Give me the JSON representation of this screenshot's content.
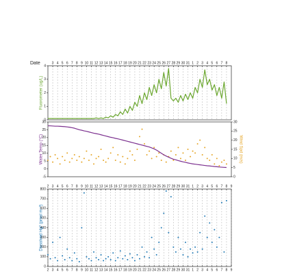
{
  "chart_data": [
    {
      "type": "line",
      "xlabel": "Date",
      "ylabel": "Fluorometer (ug/L)",
      "grid": true,
      "xtick_sides": [
        "top"
      ],
      "xlim": [
        0,
        38
      ],
      "ylim": [
        0,
        4
      ],
      "yticks": [
        0,
        1,
        2,
        3,
        4
      ],
      "xticks": [
        {
          "value": 1,
          "label": "3"
        },
        {
          "value": 2,
          "label": "4"
        },
        {
          "value": 3,
          "label": "5"
        },
        {
          "value": 4,
          "label": "6"
        },
        {
          "value": 5,
          "label": "7"
        },
        {
          "value": 6,
          "label": "8"
        },
        {
          "value": 7,
          "label": "9"
        },
        {
          "value": 8,
          "label": "10"
        },
        {
          "value": 9,
          "label": "11"
        },
        {
          "value": 10,
          "label": "12"
        },
        {
          "value": 11,
          "label": "13"
        },
        {
          "value": 12,
          "label": "14"
        },
        {
          "value": 13,
          "label": "15"
        },
        {
          "value": 14,
          "label": "16"
        },
        {
          "value": 15,
          "label": "17"
        },
        {
          "value": 16,
          "label": "18"
        },
        {
          "value": 17,
          "label": "19"
        },
        {
          "value": 18,
          "label": "20"
        },
        {
          "value": 19,
          "label": "21"
        },
        {
          "value": 20,
          "label": "22"
        },
        {
          "value": 21,
          "label": "23"
        },
        {
          "value": 22,
          "label": "24"
        },
        {
          "value": 23,
          "label": "25"
        },
        {
          "value": 24,
          "label": "26"
        },
        {
          "value": 25,
          "label": "27"
        },
        {
          "value": 26,
          "label": "28"
        },
        {
          "value": 27,
          "label": "29"
        },
        {
          "value": 28,
          "label": "30"
        },
        {
          "value": 29,
          "label": "31"
        },
        {
          "value": 30,
          "label": "1"
        },
        {
          "value": 31,
          "label": "2"
        },
        {
          "value": 32,
          "label": "3"
        },
        {
          "value": 33,
          "label": "4"
        },
        {
          "value": 34,
          "label": "5"
        },
        {
          "value": 35,
          "label": "6"
        },
        {
          "value": 36,
          "label": "7"
        },
        {
          "value": 37,
          "label": "8"
        }
      ],
      "x": [
        0,
        0.5,
        1,
        1.5,
        2,
        2.5,
        3,
        3.5,
        4,
        4.5,
        5,
        5.5,
        6,
        6.5,
        7,
        7.5,
        8,
        8.5,
        9,
        9.5,
        10,
        10.5,
        11,
        11.5,
        12,
        12.5,
        13,
        13.5,
        14,
        14.5,
        15,
        15.5,
        16,
        16.5,
        17,
        17.5,
        18,
        18.5,
        19,
        19.5,
        20,
        20.5,
        21,
        21.5,
        22,
        22.5,
        23,
        23.5,
        24,
        24.5,
        25,
        25.5,
        26,
        26.5,
        27,
        27.5,
        28,
        28.5,
        29,
        29.5,
        30,
        30.5,
        31,
        31.5,
        32,
        32.5,
        33,
        33.5,
        34,
        34.5,
        35,
        35.5,
        36,
        36.5,
        37
      ],
      "series": [
        {
          "type": "line",
          "color": "#6aa62e",
          "values": [
            0.1,
            0.1,
            0.1,
            0.1,
            0.1,
            0.1,
            0.1,
            0.1,
            0.1,
            0.1,
            0.1,
            0.1,
            0.1,
            0.1,
            0.1,
            0.1,
            0.1,
            0.1,
            0.1,
            0.1,
            0.15,
            0.1,
            0.15,
            0.1,
            0.2,
            0.15,
            0.3,
            0.2,
            0.4,
            0.3,
            0.6,
            0.4,
            0.8,
            0.5,
            1.0,
            0.7,
            1.3,
            1.0,
            1.8,
            1.2,
            2.0,
            1.5,
            2.4,
            1.8,
            2.6,
            2.0,
            3.0,
            2.3,
            3.5,
            2.5,
            3.8,
            1.6,
            1.4,
            1.6,
            1.3,
            1.8,
            1.4,
            1.9,
            1.5,
            2.0,
            1.6,
            2.4,
            2.0,
            3.0,
            2.4,
            3.7,
            2.6,
            3.0,
            2.2,
            2.6,
            1.8,
            2.4,
            1.6,
            2.8,
            1.2
          ]
        }
      ]
    },
    {
      "type": "line",
      "ylabel": "Water Temp (°C)",
      "y2label": "Wind Spd (m/s)",
      "grid": false,
      "xtick_sides": [],
      "xlim": [
        0,
        38
      ],
      "ylim": [
        -5,
        30
      ],
      "yticks": [
        -5,
        0,
        5,
        10,
        15,
        20,
        25,
        30
      ],
      "y2lim": [
        0,
        30
      ],
      "y2ticks": [
        0,
        5,
        10,
        15,
        20,
        25,
        30
      ],
      "x": [
        0,
        0.5,
        1,
        1.5,
        2,
        2.5,
        3,
        3.5,
        4,
        4.5,
        5,
        5.5,
        6,
        6.5,
        7,
        7.5,
        8,
        8.5,
        9,
        9.5,
        10,
        10.5,
        11,
        11.5,
        12,
        12.5,
        13,
        13.5,
        14,
        14.5,
        15,
        15.5,
        16,
        16.5,
        17,
        17.5,
        18,
        18.5,
        19,
        19.5,
        20,
        20.5,
        21,
        21.5,
        22,
        22.5,
        23,
        23.5,
        24,
        24.5,
        25,
        25.5,
        26,
        26.5,
        27,
        27.5,
        28,
        28.5,
        29,
        29.5,
        30,
        30.5,
        31,
        31.5,
        32,
        32.5,
        33,
        33.5,
        34,
        34.5,
        35,
        35.5,
        36,
        36.5,
        37
      ],
      "series": [
        {
          "type": "line",
          "color": "#7b2f8e",
          "values": [
            27.5,
            27.5,
            27.4,
            27.3,
            27.3,
            27.2,
            27.1,
            27,
            26.8,
            26.6,
            26.3,
            26,
            25.5,
            25,
            24.7,
            24.3,
            24,
            23.6,
            23.2,
            22.8,
            22.5,
            22.2,
            21.8,
            21.4,
            21,
            20.6,
            20.2,
            19.9,
            19.5,
            19.2,
            18.8,
            18.4,
            18,
            17.6,
            17.2,
            16.8,
            16.4,
            16,
            15.6,
            15.2,
            14.8,
            14.4,
            14,
            13.4,
            12.8,
            12,
            11,
            10,
            9,
            8.2,
            7.5,
            6.8,
            6.2,
            5.8,
            5.3,
            4.9,
            4.5,
            4.2,
            3.8,
            3.5,
            3.2,
            3,
            2.8,
            2.6,
            2.4,
            2.2,
            2,
            1.9,
            1.7,
            1.5,
            1.4,
            1.2,
            1.1,
            1,
            0.9
          ]
        },
        {
          "type": "scatter",
          "axis": "y2",
          "color": "#e5a526",
          "values": [
            9,
            11,
            8,
            12,
            10,
            7,
            11,
            9,
            13,
            8,
            10,
            12,
            9,
            11,
            8,
            10,
            14,
            9,
            12,
            7,
            10,
            11,
            15,
            9,
            8,
            10,
            13,
            16,
            9,
            12,
            8,
            11,
            7,
            10,
            14,
            12,
            9,
            15,
            22,
            26,
            18,
            12,
            14,
            10,
            16,
            11,
            13,
            9,
            12,
            8,
            11,
            14,
            9,
            12,
            16,
            10,
            13,
            9,
            15,
            11,
            14,
            13,
            18,
            20,
            12,
            16,
            10,
            9,
            12,
            7,
            10,
            6,
            8,
            9,
            7
          ]
        }
      ]
    },
    {
      "type": "scatter",
      "ylabel": "Dissolved Hg⁰ (pmol m⁻³)",
      "grid": true,
      "xtick_sides": [
        "top",
        "bottom"
      ],
      "xlim": [
        0,
        38
      ],
      "ylim": [
        0,
        800
      ],
      "yticks": [
        0,
        100,
        200,
        300,
        400,
        500,
        600,
        700,
        800
      ],
      "xticks": [
        {
          "value": 0,
          "label": "2"
        },
        {
          "value": 1,
          "label": "3"
        },
        {
          "value": 2,
          "label": "4"
        },
        {
          "value": 3,
          "label": "5"
        },
        {
          "value": 4,
          "label": "6"
        },
        {
          "value": 5,
          "label": "7"
        },
        {
          "value": 6,
          "label": "8"
        },
        {
          "value": 7,
          "label": "9"
        },
        {
          "value": 8,
          "label": "10"
        },
        {
          "value": 9,
          "label": "11"
        },
        {
          "value": 10,
          "label": "12"
        },
        {
          "value": 11,
          "label": "13"
        },
        {
          "value": 12,
          "label": "14"
        },
        {
          "value": 13,
          "label": "15"
        },
        {
          "value": 14,
          "label": "16"
        },
        {
          "value": 15,
          "label": "17"
        },
        {
          "value": 16,
          "label": "18"
        },
        {
          "value": 17,
          "label": "19"
        },
        {
          "value": 18,
          "label": "20"
        },
        {
          "value": 19,
          "label": "21"
        },
        {
          "value": 20,
          "label": "22"
        },
        {
          "value": 21,
          "label": "23"
        },
        {
          "value": 22,
          "label": "24"
        },
        {
          "value": 23,
          "label": "25"
        },
        {
          "value": 24,
          "label": "26"
        },
        {
          "value": 25,
          "label": "27"
        },
        {
          "value": 26,
          "label": "28"
        },
        {
          "value": 27,
          "label": "29"
        },
        {
          "value": 28,
          "label": "30"
        },
        {
          "value": 29,
          "label": "31"
        },
        {
          "value": 30,
          "label": "1"
        },
        {
          "value": 31,
          "label": "2"
        },
        {
          "value": 32,
          "label": "3"
        },
        {
          "value": 33,
          "label": "4"
        },
        {
          "value": 34,
          "label": "5"
        },
        {
          "value": 35,
          "label": "6"
        },
        {
          "value": 36,
          "label": "7"
        },
        {
          "value": 37,
          "label": "8"
        },
        {
          "value": 38,
          "label": "9"
        }
      ],
      "x": [
        0,
        0.5,
        1,
        1.5,
        2,
        2.5,
        3,
        3.5,
        4,
        4.5,
        5,
        5.5,
        6,
        6.5,
        7,
        7.5,
        8,
        8.5,
        9,
        9.5,
        10,
        10.5,
        11,
        11.5,
        12,
        12.5,
        13,
        13.5,
        14,
        14.5,
        15,
        15.5,
        16,
        16.5,
        17,
        17.5,
        18,
        18.5,
        19,
        19.5,
        20,
        20.5,
        21,
        21.5,
        22,
        22.5,
        23,
        23.5,
        24,
        24.5,
        25,
        25.5,
        26,
        26.5,
        27,
        27.5,
        28,
        28.5,
        29,
        29.5,
        30,
        30.5,
        31,
        31.5,
        32,
        32.5,
        33,
        33.5,
        34,
        34.5,
        35,
        35.5,
        36,
        36.5,
        37
      ],
      "series": [
        {
          "type": "scatter",
          "color": "#1f78b4",
          "values": [
            120,
            80,
            250,
            90,
            60,
            300,
            110,
            70,
            180,
            90,
            60,
            140,
            80,
            50,
            400,
            760,
            100,
            80,
            60,
            150,
            90,
            70,
            120,
            60,
            80,
            100,
            70,
            140,
            60,
            90,
            160,
            80,
            110,
            70,
            130,
            90,
            60,
            120,
            80,
            200,
            100,
            150,
            90,
            300,
            180,
            120,
            250,
            400,
            550,
            780,
            350,
            720,
            200,
            150,
            300,
            180,
            120,
            250,
            100,
            180,
            140,
            200,
            150,
            350,
            180,
            520,
            300,
            450,
            250,
            380,
            200,
            300,
            660,
            150,
            680
          ]
        }
      ]
    }
  ]
}
